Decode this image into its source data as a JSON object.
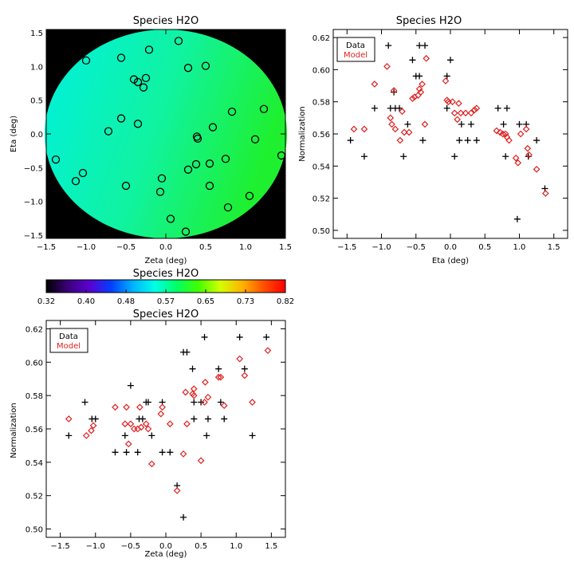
{
  "chart_data": [
    {
      "id": "map",
      "type": "scatter",
      "title": "Species H2O",
      "xlabel": "Zeta (deg)",
      "ylabel": "Eta (deg)",
      "xlim": [
        -1.5,
        1.5
      ],
      "ylim": [
        -1.55,
        1.55
      ],
      "xticks": [
        -1.5,
        -1.0,
        -0.5,
        0.0,
        0.5,
        1.0,
        1.5
      ],
      "xtick_labels": [
        "−1.5",
        "−1.0",
        "−0.5",
        "0.0",
        "0.5",
        "1.0",
        "1.5"
      ],
      "yticks": [
        -1.5,
        -1.0,
        -0.5,
        0.0,
        0.5,
        1.0,
        1.5
      ],
      "ytick_labels": [
        "−1.5",
        "−1.0",
        "−0.5",
        "0.0",
        "0.5",
        "1.0",
        "1.5"
      ],
      "background_color": "#000000",
      "field_color_left": "#0ff0c8",
      "field_color_right": "#2af53a",
      "marker_color": "#000000",
      "points": [
        {
          "x": -1.38,
          "y": -0.38
        },
        {
          "x": -1.13,
          "y": -0.7
        },
        {
          "x": -1.04,
          "y": -0.58
        },
        {
          "x": -1.0,
          "y": 1.09
        },
        {
          "x": -0.72,
          "y": 0.04
        },
        {
          "x": -0.56,
          "y": 0.23
        },
        {
          "x": -0.56,
          "y": 1.13
        },
        {
          "x": -0.5,
          "y": -0.77
        },
        {
          "x": -0.4,
          "y": 0.81
        },
        {
          "x": -0.35,
          "y": 0.77
        },
        {
          "x": -0.35,
          "y": 0.15
        },
        {
          "x": -0.28,
          "y": 0.69
        },
        {
          "x": -0.25,
          "y": 0.83
        },
        {
          "x": -0.21,
          "y": 1.25
        },
        {
          "x": -0.07,
          "y": -0.86
        },
        {
          "x": -0.05,
          "y": -0.66
        },
        {
          "x": 0.06,
          "y": -1.26
        },
        {
          "x": 0.16,
          "y": 1.38
        },
        {
          "x": 0.25,
          "y": -1.45
        },
        {
          "x": 0.28,
          "y": 0.98
        },
        {
          "x": 0.28,
          "y": -0.53
        },
        {
          "x": 0.38,
          "y": -0.45
        },
        {
          "x": 0.39,
          "y": -0.04
        },
        {
          "x": 0.4,
          "y": -0.07
        },
        {
          "x": 0.5,
          "y": 1.01
        },
        {
          "x": 0.55,
          "y": -0.44
        },
        {
          "x": 0.55,
          "y": -0.77
        },
        {
          "x": 0.59,
          "y": 0.1
        },
        {
          "x": 0.75,
          "y": -0.37
        },
        {
          "x": 0.78,
          "y": -1.09
        },
        {
          "x": 0.83,
          "y": 0.33
        },
        {
          "x": 1.05,
          "y": -0.92
        },
        {
          "x": 1.12,
          "y": -0.08
        },
        {
          "x": 1.23,
          "y": 0.37
        },
        {
          "x": 1.45,
          "y": -0.32
        }
      ]
    },
    {
      "id": "colorbar",
      "type": "heatmap",
      "title": "Species H2O",
      "range": [
        0.32,
        0.82
      ],
      "tick_labels": [
        "0.32",
        "0.40",
        "0.48",
        "0.57",
        "0.65",
        "0.73",
        "0.82"
      ],
      "colormap": [
        "#000000",
        "#3c007a",
        "#5a00d2",
        "#0040ff",
        "#00b4ff",
        "#00ffe6",
        "#00ff64",
        "#40ff00",
        "#d2ff00",
        "#ffb400",
        "#ff5000",
        "#ff0000"
      ]
    },
    {
      "id": "eta",
      "type": "scatter",
      "title": "Species H2O",
      "xlabel": "Eta (deg)",
      "ylabel": "Normalization",
      "xlim": [
        -1.7,
        1.7
      ],
      "ylim": [
        0.495,
        0.625
      ],
      "xticks": [
        -1.5,
        -1.0,
        -0.5,
        0.0,
        0.5,
        1.0,
        1.5
      ],
      "xtick_labels": [
        "−1.5",
        "−1.0",
        "−0.5",
        "0.0",
        "0.5",
        "1.0",
        "1.5"
      ],
      "yticks": [
        0.5,
        0.52,
        0.54,
        0.56,
        0.58,
        0.6,
        0.62
      ],
      "ytick_labels": [
        "0.50",
        "0.52",
        "0.54",
        "0.56",
        "0.58",
        "0.60",
        "0.62"
      ],
      "legend": {
        "position": "top-left",
        "entries": [
          "Data",
          "Model"
        ]
      },
      "series": [
        {
          "name": "Data",
          "marker": "plus",
          "color": "#000000",
          "points": [
            [
              -1.45,
              0.556
            ],
            [
              -1.25,
              0.546
            ],
            [
              -1.1,
              0.576
            ],
            [
              -0.9,
              0.615
            ],
            [
              -0.87,
              0.576
            ],
            [
              -0.82,
              0.586
            ],
            [
              -0.8,
              0.576
            ],
            [
              -0.74,
              0.576
            ],
            [
              -0.68,
              0.546
            ],
            [
              -0.62,
              0.566
            ],
            [
              -0.55,
              0.606
            ],
            [
              -0.5,
              0.596
            ],
            [
              -0.45,
              0.596
            ],
            [
              -0.45,
              0.615
            ],
            [
              -0.4,
              0.556
            ],
            [
              -0.37,
              0.615
            ],
            [
              -0.05,
              0.576
            ],
            [
              -0.05,
              0.596
            ],
            [
              0.0,
              0.606
            ],
            [
              0.06,
              0.546
            ],
            [
              0.13,
              0.556
            ],
            [
              0.16,
              0.566
            ],
            [
              0.25,
              0.556
            ],
            [
              0.3,
              0.566
            ],
            [
              0.38,
              0.556
            ],
            [
              0.69,
              0.576
            ],
            [
              0.77,
              0.566
            ],
            [
              0.8,
              0.546
            ],
            [
              0.82,
              0.576
            ],
            [
              0.97,
              0.507
            ],
            [
              1.0,
              0.566
            ],
            [
              1.1,
              0.566
            ],
            [
              1.13,
              0.546
            ],
            [
              1.25,
              0.556
            ],
            [
              1.37,
              0.526
            ]
          ]
        },
        {
          "name": "Model",
          "marker": "diamond",
          "color": "#e02020",
          "points": [
            [
              -1.4,
              0.563
            ],
            [
              -1.25,
              0.563
            ],
            [
              -1.1,
              0.591
            ],
            [
              -0.92,
              0.602
            ],
            [
              -0.87,
              0.57
            ],
            [
              -0.85,
              0.566
            ],
            [
              -0.82,
              0.587
            ],
            [
              -0.8,
              0.563
            ],
            [
              -0.73,
              0.556
            ],
            [
              -0.7,
              0.574
            ],
            [
              -0.67,
              0.561
            ],
            [
              -0.6,
              0.561
            ],
            [
              -0.55,
              0.582
            ],
            [
              -0.52,
              0.583
            ],
            [
              -0.47,
              0.584
            ],
            [
              -0.45,
              0.588
            ],
            [
              -0.43,
              0.586
            ],
            [
              -0.41,
              0.591
            ],
            [
              -0.37,
              0.566
            ],
            [
              -0.35,
              0.607
            ],
            [
              -0.07,
              0.593
            ],
            [
              -0.05,
              0.581
            ],
            [
              -0.03,
              0.58
            ],
            [
              0.03,
              0.58
            ],
            [
              0.06,
              0.573
            ],
            [
              0.1,
              0.569
            ],
            [
              0.12,
              0.579
            ],
            [
              0.15,
              0.573
            ],
            [
              0.22,
              0.573
            ],
            [
              0.3,
              0.573
            ],
            [
              0.35,
              0.575
            ],
            [
              0.38,
              0.576
            ],
            [
              0.67,
              0.562
            ],
            [
              0.72,
              0.561
            ],
            [
              0.76,
              0.56
            ],
            [
              0.8,
              0.56
            ],
            [
              0.82,
              0.558
            ],
            [
              0.85,
              0.556
            ],
            [
              0.95,
              0.545
            ],
            [
              0.98,
              0.542
            ],
            [
              1.02,
              0.56
            ],
            [
              1.1,
              0.563
            ],
            [
              1.12,
              0.551
            ],
            [
              1.14,
              0.547
            ],
            [
              1.25,
              0.538
            ],
            [
              1.38,
              0.523
            ]
          ]
        }
      ]
    },
    {
      "id": "zeta",
      "type": "scatter",
      "title": "Species H2O",
      "xlabel": "Zeta (deg)",
      "ylabel": "Normalization",
      "xlim": [
        -1.7,
        1.7
      ],
      "ylim": [
        0.495,
        0.625
      ],
      "xticks": [
        -1.5,
        -1.0,
        -0.5,
        0.0,
        0.5,
        1.0,
        1.5
      ],
      "xtick_labels": [
        "−1.5",
        "−1.0",
        "−0.5",
        "0.0",
        "0.5",
        "1.0",
        "1.5"
      ],
      "yticks": [
        0.5,
        0.52,
        0.54,
        0.56,
        0.58,
        0.6,
        0.62
      ],
      "ytick_labels": [
        "0.50",
        "0.52",
        "0.54",
        "0.56",
        "0.58",
        "0.60",
        "0.62"
      ],
      "legend": {
        "position": "top-left",
        "entries": [
          "Data",
          "Model"
        ]
      },
      "series": [
        {
          "name": "Data",
          "marker": "plus",
          "color": "#000000",
          "points": [
            [
              -1.38,
              0.556
            ],
            [
              -1.15,
              0.576
            ],
            [
              -1.05,
              0.566
            ],
            [
              -1.0,
              0.566
            ],
            [
              -0.72,
              0.546
            ],
            [
              -0.58,
              0.556
            ],
            [
              -0.56,
              0.546
            ],
            [
              -0.5,
              0.586
            ],
            [
              -0.4,
              0.546
            ],
            [
              -0.38,
              0.566
            ],
            [
              -0.33,
              0.566
            ],
            [
              -0.28,
              0.576
            ],
            [
              -0.25,
              0.576
            ],
            [
              -0.2,
              0.556
            ],
            [
              -0.05,
              0.576
            ],
            [
              -0.05,
              0.546
            ],
            [
              0.06,
              0.546
            ],
            [
              0.16,
              0.526
            ],
            [
              0.25,
              0.507
            ],
            [
              0.25,
              0.606
            ],
            [
              0.3,
              0.606
            ],
            [
              0.38,
              0.596
            ],
            [
              0.4,
              0.576
            ],
            [
              0.4,
              0.566
            ],
            [
              0.5,
              0.576
            ],
            [
              0.55,
              0.615
            ],
            [
              0.58,
              0.556
            ],
            [
              0.6,
              0.566
            ],
            [
              0.75,
              0.596
            ],
            [
              0.78,
              0.576
            ],
            [
              0.83,
              0.566
            ],
            [
              1.05,
              0.615
            ],
            [
              1.12,
              0.596
            ],
            [
              1.23,
              0.556
            ],
            [
              1.43,
              0.615
            ]
          ]
        },
        {
          "name": "Model",
          "marker": "diamond",
          "color": "#e02020",
          "points": [
            [
              -1.38,
              0.566
            ],
            [
              -1.13,
              0.556
            ],
            [
              -1.06,
              0.559
            ],
            [
              -1.03,
              0.562
            ],
            [
              -0.72,
              0.573
            ],
            [
              -0.58,
              0.563
            ],
            [
              -0.56,
              0.573
            ],
            [
              -0.53,
              0.551
            ],
            [
              -0.5,
              0.563
            ],
            [
              -0.45,
              0.56
            ],
            [
              -0.4,
              0.56
            ],
            [
              -0.37,
              0.573
            ],
            [
              -0.35,
              0.561
            ],
            [
              -0.28,
              0.563
            ],
            [
              -0.25,
              0.56
            ],
            [
              -0.2,
              0.539
            ],
            [
              -0.07,
              0.569
            ],
            [
              -0.05,
              0.573
            ],
            [
              0.06,
              0.563
            ],
            [
              0.16,
              0.523
            ],
            [
              0.25,
              0.545
            ],
            [
              0.28,
              0.582
            ],
            [
              0.3,
              0.563
            ],
            [
              0.38,
              0.581
            ],
            [
              0.4,
              0.58
            ],
            [
              0.4,
              0.584
            ],
            [
              0.5,
              0.541
            ],
            [
              0.55,
              0.576
            ],
            [
              0.56,
              0.588
            ],
            [
              0.6,
              0.579
            ],
            [
              0.75,
              0.591
            ],
            [
              0.78,
              0.591
            ],
            [
              0.83,
              0.574
            ],
            [
              1.05,
              0.602
            ],
            [
              1.12,
              0.592
            ],
            [
              1.23,
              0.576
            ],
            [
              1.45,
              0.607
            ]
          ]
        }
      ]
    }
  ]
}
